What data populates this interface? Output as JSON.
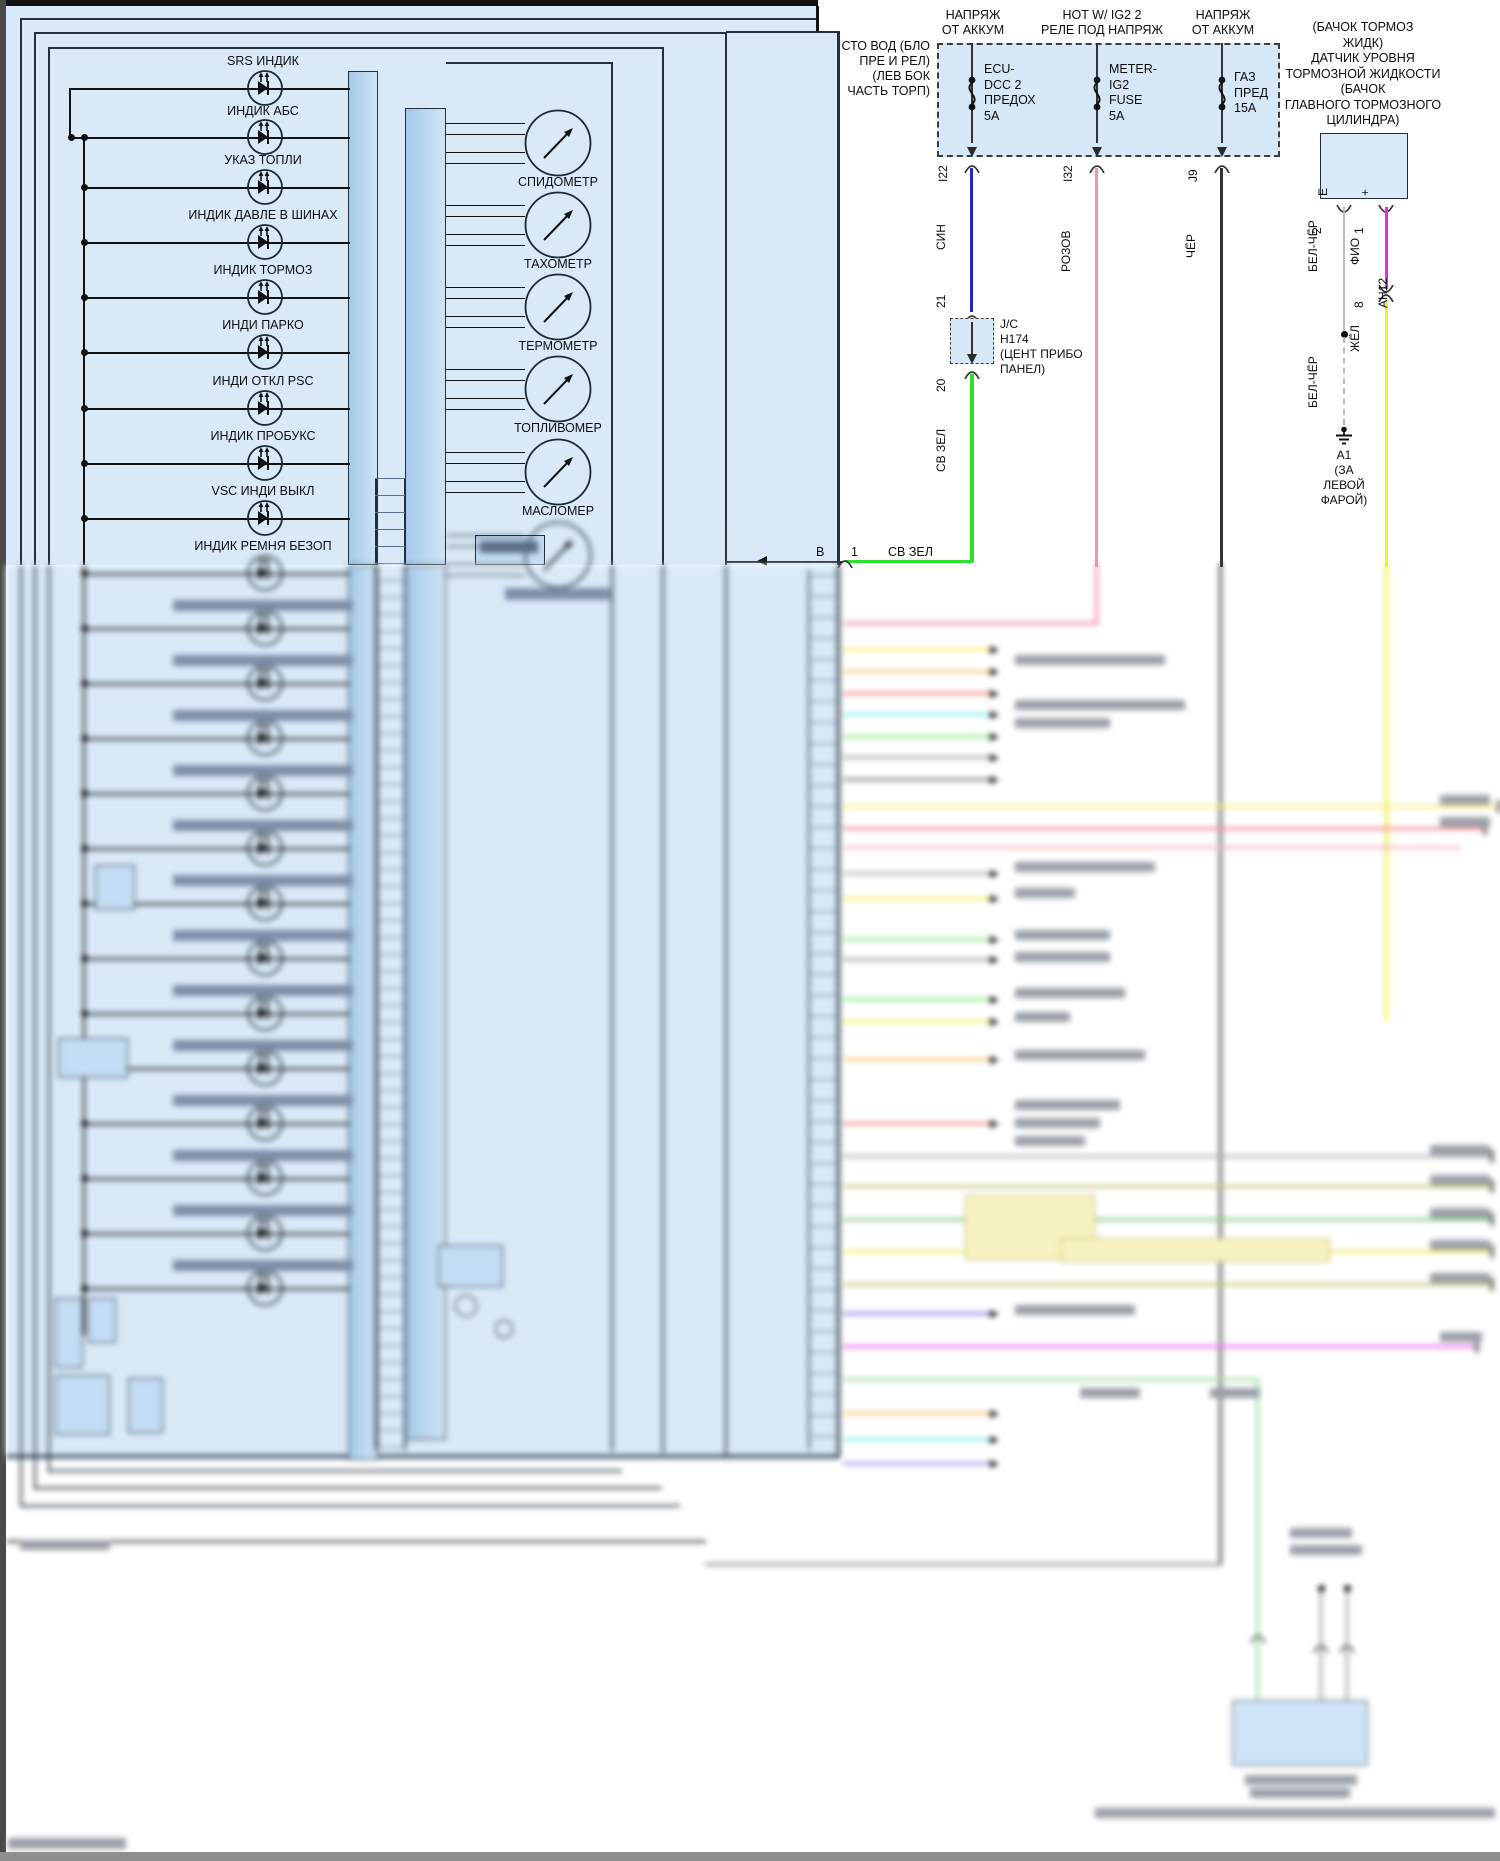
{
  "cluster": {
    "indicators": [
      "SRS ИНДИК",
      "ИНДИК АБС",
      "УКАЗ ТОПЛИ",
      "ИНДИК ДАВЛЕ В ШИНАХ",
      "ИНДИК ТОРМОЗ",
      "ИНДИ ПАРКО",
      "ИНДИ ОТКЛ PSC",
      "ИНДИК ПРОБУКС",
      "VSC ИНДИ ВЫКЛ",
      "ИНДИК РЕМНЯ БЕЗОП"
    ],
    "gauges": [
      "СПИДОМЕТР",
      "ТАХОМЕТР",
      "ТЕРМОМЕТР",
      "ТОПЛИВОМЕР",
      "МАСЛОМЕР"
    ],
    "connector_b": {
      "name": "В",
      "pin": "1",
      "wire": "СВ ЗЕЛ"
    }
  },
  "power": {
    "bus1_header": "НАПРЯЖ\nОТ АККУМ",
    "bus2_header": "HOT W/ IG2 2\nРЕЛЕ ПОД НАПРЯЖ",
    "bus3_header": "НАПРЯЖ\nОТ АККУМ",
    "location_label": "СТО ВОД (БЛО\nПРЕ И РЕЛ)\n(ЛЕВ БОК\nЧАСТЬ ТОРП)",
    "fuses": [
      {
        "name": "ECU-\nDCC 2\nПРЕДОХ\n5A",
        "pin": "I22"
      },
      {
        "name": "METER-\nIG2\nFUSE\n5A",
        "pin": "I32"
      },
      {
        "name": "ГАЗ\nПРЕД\n15A",
        "pin": "J9"
      }
    ]
  },
  "junction": {
    "label": "J/C\nH174\n(ЦЕНТ ПРИБО\nПАНЕЛ)",
    "pin_in": "21",
    "pin_out": "20"
  },
  "wires": {
    "sin": "СИН",
    "rozov": "РОЗОВ",
    "chyor": "ЧЁР",
    "sv_zel_vert": "СВ ЗЕЛ",
    "bel_chyor_1": "БЕЛ-ЧЁР",
    "bel_chyor_2": "БЕЛ-ЧЁР",
    "fio": "ФИО",
    "zhyol": "ЖЁЛ"
  },
  "brake_sensor": {
    "header": "(БАЧОК ТОРМОЗ\nЖИДК)\nДАТЧИК УРОВНЯ\nТОРМОЗНОЙ ЖИДКОСТИ\n(БАЧОК\nГЛАВНОГО ТОРМОЗНОГО\nЦИЛИНДРА)",
    "terminal_e": "Е",
    "terminal_plus": "+",
    "pin_e": "2",
    "pin_plus": "1",
    "harness_pin": "8",
    "harness_connector": "АН12"
  },
  "ground": {
    "label": "А1\n(ЗА\nЛЕВОЙ\nФАРОЙ)"
  },
  "colors": {
    "sin": "#2323cc",
    "rozov": "#f492a8",
    "chyor": "#333333",
    "sv_zel": "#2ee02e",
    "bel_chyor": "#bcbcbc",
    "fio": "#e62ee6",
    "zhyol": "#f0ee3a"
  }
}
